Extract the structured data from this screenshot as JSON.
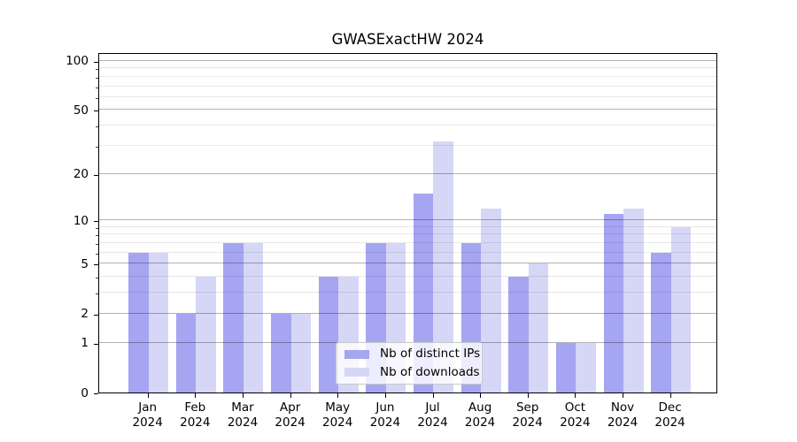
{
  "title": "GWASExactHW 2024",
  "chart_data": {
    "type": "bar",
    "title": "GWASExactHW 2024",
    "y_scale": "log1p",
    "grid": true,
    "legend_position": "inside lower-center",
    "categories": [
      "Jan 2024",
      "Feb 2024",
      "Mar 2024",
      "Apr 2024",
      "May 2024",
      "Jun 2024",
      "Jul 2024",
      "Aug 2024",
      "Sep 2024",
      "Oct 2024",
      "Nov 2024",
      "Dec 2024"
    ],
    "series": [
      {
        "name": "Nb of distinct IPs",
        "color": "#a5a5f2",
        "values": [
          6,
          2,
          7,
          2,
          4,
          7,
          15,
          7,
          4,
          1,
          11,
          6
        ]
      },
      {
        "name": "Nb of downloads",
        "color": "#d6d6f6",
        "values": [
          6,
          4,
          7,
          2,
          4,
          7,
          32,
          12,
          5,
          1,
          12,
          9
        ]
      }
    ],
    "y_major_ticks": [
      0,
      1,
      2,
      5,
      10,
      20,
      50,
      100
    ],
    "y_minor_ticks": [
      3,
      4,
      6,
      7,
      8,
      9,
      30,
      40,
      60,
      70,
      80,
      90
    ],
    "ylim": [
      0,
      113
    ],
    "xlabel": "",
    "ylabel": ""
  },
  "colors": {
    "background": "#ffffff",
    "axis": "#000000",
    "major_grid": "#b3b3b3",
    "minor_grid": "#e8e8e8",
    "legend_border": "#c9c9c9"
  }
}
